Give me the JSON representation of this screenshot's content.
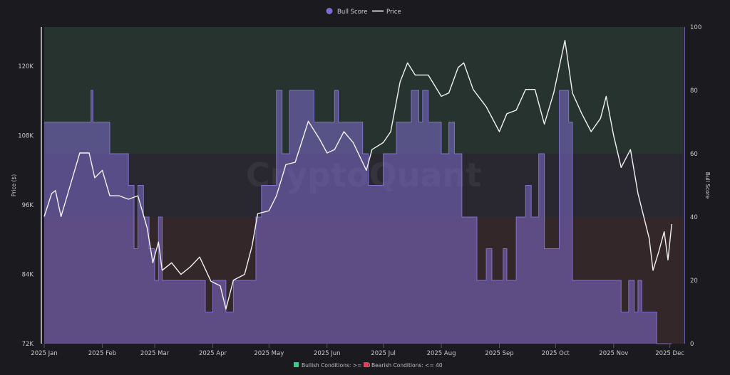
{
  "chart_data": {
    "type": "line+area",
    "watermark": "CryptoQuant",
    "legend": {
      "placement": "top-center",
      "items": [
        {
          "name": "Bull Score",
          "marker": "circle",
          "color": "#7b6bd0"
        },
        {
          "name": "Price",
          "marker": "line",
          "color": "#ffffff"
        }
      ]
    },
    "bottom_legend": [
      {
        "label": "Bullish Conditions: >= 60",
        "color": "#3ec98a"
      },
      {
        "label": "Bearish Conditions: <= 40",
        "color": "#e0405e"
      }
    ],
    "y_left": {
      "label": "Price ($)",
      "range": [
        72000,
        126800
      ],
      "ticks": [
        "72K",
        "84K",
        "96K",
        "108K",
        "120K"
      ],
      "tick_values": [
        72000,
        84000,
        96000,
        108000,
        120000
      ]
    },
    "y_right": {
      "label": "Bull Score",
      "range": [
        0,
        100
      ],
      "ticks": [
        "0",
        "20",
        "40",
        "60",
        "80",
        "100"
      ]
    },
    "x_axis": {
      "range": [
        "2025-01-01",
        "2025-12-08"
      ],
      "ticks": [
        "2025 Jan",
        "2025 Feb",
        "2025 Mar",
        "2025 Apr",
        "2025 May",
        "2025 Jun",
        "2025 Jul",
        "2025 Aug",
        "2025 Sep",
        "2025 Oct",
        "2025 Nov",
        "2025 Dec"
      ],
      "tick_dates": [
        "2025-01-01",
        "2025-02-01",
        "2025-03-01",
        "2025-04-01",
        "2025-05-01",
        "2025-06-01",
        "2025-07-01",
        "2025-08-01",
        "2025-09-01",
        "2025-10-01",
        "2025-11-01",
        "2025-12-01"
      ]
    },
    "zones": [
      {
        "name": "bullish",
        "from": 60,
        "to": 100,
        "color": "#26332e"
      },
      {
        "name": "neutral",
        "from": 40,
        "to": 60,
        "color": "#29272f"
      },
      {
        "name": "bearish",
        "from": 0,
        "to": 40,
        "color": "#33272a"
      }
    ],
    "price": {
      "dates": [
        "2025-01-01",
        "2025-01-05",
        "2025-01-07",
        "2025-01-10",
        "2025-01-15",
        "2025-01-20",
        "2025-01-25",
        "2025-01-28",
        "2025-02-01",
        "2025-02-05",
        "2025-02-10",
        "2025-02-15",
        "2025-02-20",
        "2025-02-25",
        "2025-02-28",
        "2025-03-03",
        "2025-03-05",
        "2025-03-10",
        "2025-03-15",
        "2025-03-20",
        "2025-03-25",
        "2025-03-31",
        "2025-04-05",
        "2025-04-08",
        "2025-04-12",
        "2025-04-18",
        "2025-04-22",
        "2025-04-25",
        "2025-05-01",
        "2025-05-05",
        "2025-05-10",
        "2025-05-15",
        "2025-05-22",
        "2025-05-28",
        "2025-06-01",
        "2025-06-05",
        "2025-06-10",
        "2025-06-15",
        "2025-06-22",
        "2025-06-25",
        "2025-07-01",
        "2025-07-05",
        "2025-07-10",
        "2025-07-14",
        "2025-07-18",
        "2025-07-25",
        "2025-08-01",
        "2025-08-05",
        "2025-08-10",
        "2025-08-13",
        "2025-08-18",
        "2025-08-25",
        "2025-09-01",
        "2025-09-05",
        "2025-09-10",
        "2025-09-15",
        "2025-09-20",
        "2025-09-25",
        "2025-09-30",
        "2025-10-06",
        "2025-10-10",
        "2025-10-15",
        "2025-10-20",
        "2025-10-25",
        "2025-10-28",
        "2025-11-01",
        "2025-11-05",
        "2025-11-10",
        "2025-11-14",
        "2025-11-20",
        "2025-11-22",
        "2025-11-25",
        "2025-11-28",
        "2025-11-30",
        "2025-12-02"
      ],
      "values": [
        94000,
        98000,
        98500,
        94000,
        99500,
        105000,
        105000,
        100700,
        102000,
        97600,
        97600,
        97000,
        97600,
        92000,
        86000,
        89600,
        84700,
        86000,
        84000,
        85300,
        87000,
        82800,
        82000,
        78000,
        83000,
        84000,
        89000,
        94500,
        95000,
        97600,
        103000,
        103400,
        110500,
        107400,
        105000,
        105600,
        108700,
        106800,
        102000,
        105600,
        106800,
        108700,
        117300,
        120600,
        118500,
        118500,
        114800,
        115400,
        119800,
        120600,
        116000,
        113000,
        108700,
        111800,
        112400,
        116000,
        116000,
        110000,
        115400,
        124500,
        115400,
        111800,
        108700,
        111000,
        114800,
        108000,
        102500,
        105600,
        98000,
        90200,
        84700,
        87800,
        91400,
        86500,
        92700
      ]
    },
    "bull_score": {
      "dates": [
        "2025-01-01",
        "2025-01-26",
        "2025-01-27",
        "2025-02-05",
        "2025-02-15",
        "2025-02-18",
        "2025-02-20",
        "2025-02-23",
        "2025-02-26",
        "2025-03-01",
        "2025-03-03",
        "2025-03-05",
        "2025-03-28",
        "2025-04-01",
        "2025-04-08",
        "2025-04-12",
        "2025-04-24",
        "2025-04-27",
        "2025-05-05",
        "2025-05-08",
        "2025-05-12",
        "2025-05-25",
        "2025-06-05",
        "2025-06-07",
        "2025-06-20",
        "2025-06-23",
        "2025-07-01",
        "2025-07-08",
        "2025-07-16",
        "2025-07-20",
        "2025-07-22",
        "2025-07-25",
        "2025-08-01",
        "2025-08-05",
        "2025-08-08",
        "2025-08-12",
        "2025-08-20",
        "2025-08-25",
        "2025-08-28",
        "2025-09-03",
        "2025-09-05",
        "2025-09-10",
        "2025-09-15",
        "2025-09-18",
        "2025-09-22",
        "2025-09-25",
        "2025-10-03",
        "2025-10-08",
        "2025-10-10",
        "2025-11-05",
        "2025-11-09",
        "2025-11-12",
        "2025-11-14",
        "2025-11-16",
        "2025-11-24",
        "2025-12-02"
      ],
      "values": [
        70,
        80,
        70,
        60,
        50,
        30,
        50,
        40,
        30,
        20,
        40,
        20,
        10,
        20,
        10,
        20,
        40,
        50,
        80,
        60,
        80,
        70,
        80,
        70,
        60,
        50,
        60,
        70,
        80,
        70,
        80,
        70,
        60,
        70,
        60,
        40,
        20,
        30,
        20,
        30,
        20,
        40,
        50,
        40,
        60,
        30,
        80,
        70,
        20,
        10,
        20,
        10,
        20,
        10,
        0,
        0
      ]
    }
  }
}
